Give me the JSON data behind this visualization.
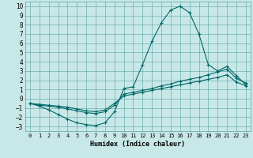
{
  "xlabel": "Humidex (Indice chaleur)",
  "bg_color": "#c8e8e8",
  "grid_color": "#5aa0a0",
  "line_color": "#006868",
  "xlim": [
    -0.5,
    23.5
  ],
  "ylim": [
    -3.5,
    10.5
  ],
  "xticks": [
    0,
    1,
    2,
    3,
    4,
    5,
    6,
    7,
    8,
    9,
    10,
    11,
    12,
    13,
    14,
    15,
    16,
    17,
    18,
    19,
    20,
    21,
    22,
    23
  ],
  "yticks": [
    -3,
    -2,
    -1,
    0,
    1,
    2,
    3,
    4,
    5,
    6,
    7,
    8,
    9,
    10
  ],
  "line1_x": [
    0,
    1,
    2,
    3,
    4,
    5,
    6,
    7,
    8,
    9,
    10,
    11,
    12,
    13,
    14,
    15,
    16,
    17,
    18,
    19,
    20,
    21,
    22,
    23
  ],
  "line1_y": [
    -0.5,
    -0.8,
    -1.2,
    -1.7,
    -2.2,
    -2.6,
    -2.8,
    -2.9,
    -2.6,
    -1.4,
    1.1,
    1.3,
    3.7,
    6.2,
    8.2,
    9.6,
    10.0,
    9.3,
    7.0,
    3.7,
    3.0,
    3.5,
    2.5,
    1.5
  ],
  "line2_x": [
    0,
    1,
    2,
    3,
    4,
    5,
    6,
    7,
    8,
    9,
    10,
    11,
    12,
    13,
    14,
    15,
    16,
    17,
    18,
    19,
    20,
    21,
    22,
    23
  ],
  "line2_y": [
    -0.5,
    -0.7,
    -0.8,
    -0.9,
    -1.1,
    -1.3,
    -1.5,
    -1.6,
    -1.4,
    -0.7,
    0.5,
    0.7,
    0.9,
    1.1,
    1.4,
    1.6,
    1.9,
    2.1,
    2.3,
    2.6,
    2.9,
    3.2,
    2.2,
    1.7
  ],
  "line3_x": [
    0,
    1,
    2,
    3,
    4,
    5,
    6,
    7,
    8,
    9,
    10,
    11,
    12,
    13,
    14,
    15,
    16,
    17,
    18,
    19,
    20,
    21,
    22,
    23
  ],
  "line3_y": [
    -0.5,
    -0.6,
    -0.7,
    -0.8,
    -0.9,
    -1.1,
    -1.3,
    -1.4,
    -1.2,
    -0.5,
    0.3,
    0.5,
    0.7,
    0.9,
    1.1,
    1.3,
    1.5,
    1.7,
    1.9,
    2.1,
    2.3,
    2.6,
    1.8,
    1.4
  ]
}
